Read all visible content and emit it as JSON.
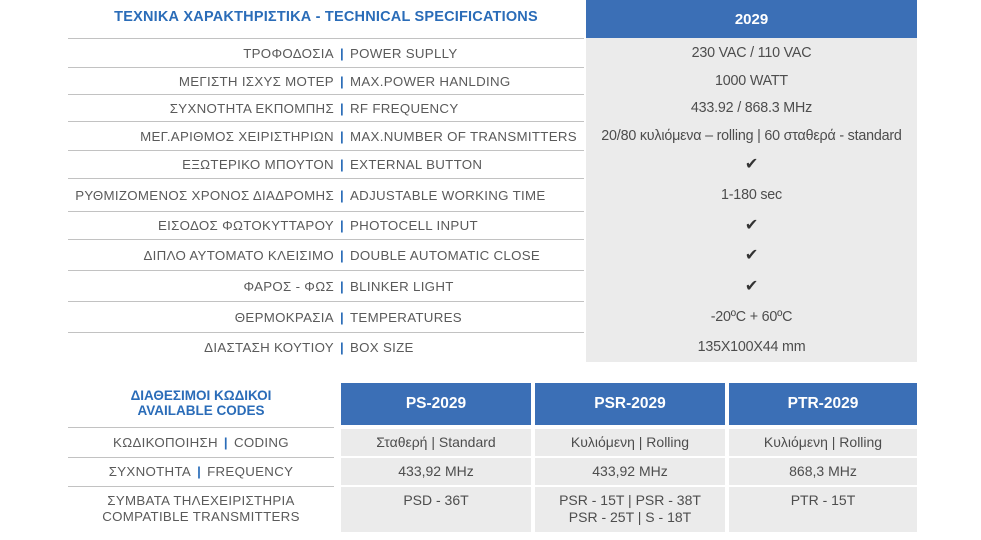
{
  "specs": {
    "title": "ΤΕΧΝΙΚΑ ΧΑΡΑΚΤΗΡΙΣΤΙΚΑ - TECHNICAL SPECIFICATIONS",
    "model": "2029",
    "separator": "|",
    "check_icon": "checkmark-icon",
    "check_glyph": "✔",
    "rows": [
      {
        "gr": "ΤΡΟΦΟΔΟΣΙΑ",
        "en": "POWER SUPLLY",
        "value": "230 VAC / 110 VAC"
      },
      {
        "gr": "ΜΕΓΙΣΤΗ ΙΣΧΥΣ ΜΟΤΕΡ",
        "en": "MAX.POWER HANLDING",
        "value": "1000 WATT"
      },
      {
        "gr": "ΣΥΧΝΟΤΗΤΑ ΕΚΠΟΜΠΗΣ",
        "en": "RF FREQUENCY",
        "value": "433.92 / 868.3 MHz"
      },
      {
        "gr": "ΜΕΓ.ΑΡΙΘΜΟΣ ΧΕΙΡΙΣΤΗΡΙΩΝ",
        "en": "MAX.NUMBER OF TRANSMITTERS",
        "value": "20/80 κυλιόμενα – rolling  |  60 σταθερά - standard"
      },
      {
        "gr": "ΕΞΩΤΕΡΙΚΟ ΜΠΟΥΤΟΝ",
        "en": "EXTERNAL BUTTON",
        "value": "✔"
      },
      {
        "gr": "ΡΥΘΜΙΖΟΜΕΝΟΣ ΧΡΟΝΟΣ ΔΙΑΔΡΟΜΗΣ",
        "en": "ADJUSTABLE WORKING TIME",
        "value": "1-180 sec"
      },
      {
        "gr": "ΕΙΣΟΔΟΣ ΦΩΤΟΚΥΤΤΑΡΟΥ",
        "en": "PHOTOCELL INPUT",
        "value": "✔"
      },
      {
        "gr": "ΔΙΠΛΟ ΑΥΤΟΜΑΤΟ ΚΛΕΙΣΙΜΟ",
        "en": "DOUBLE AUTOMATIC CLOSE",
        "value": "✔"
      },
      {
        "gr": "ΦΑΡΟΣ - ΦΩΣ",
        "en": "BLINKER LIGHT",
        "value": "✔"
      },
      {
        "gr": "ΘΕΡΜΟΚΡΑΣΙΑ",
        "en": "TEMPERATURES",
        "value": "-20ºC + 60ºC"
      },
      {
        "gr": "ΔΙΑΣΤΑΣΗ ΚΟΥΤΙΟΥ",
        "en": "BOX SIZE",
        "value": "135X100X44 mm"
      }
    ]
  },
  "codes": {
    "title_gr": "ΔΙΑΘΕΣΙΜΟΙ ΚΩΔΙΚΟΙ",
    "title_en": "AVAILABLE CODES",
    "models": [
      "PS-2029",
      "PSR-2029",
      "PTR-2029"
    ],
    "rows": [
      {
        "gr": "ΚΩΔΙΚΟΠΟΙΗΣΗ",
        "en": "CODING",
        "values": [
          [
            "Σταθερή   |   Standard"
          ],
          [
            "Κυλιόμενη  |  Rolling"
          ],
          [
            "Κυλιόμενη  |  Rolling"
          ]
        ]
      },
      {
        "gr": "ΣΥΧΝΟΤΗΤΑ",
        "en": "FREQUENCY",
        "values": [
          [
            "433,92 MHz"
          ],
          [
            "433,92 MHz"
          ],
          [
            "868,3 MHz"
          ]
        ]
      },
      {
        "gr": "ΣΥΜΒΑΤΑ ΤΗΛΕΧΕΙΡΙΣΤΗΡΙΑ",
        "en": "COMPATIBLE  TRANSMITTERS",
        "values": [
          [
            "PSD - 36T"
          ],
          [
            "PSR - 15T  |  PSR - 38T",
            "PSR - 25T  |  S - 18T"
          ],
          [
            "PTR - 15T"
          ]
        ]
      }
    ]
  }
}
